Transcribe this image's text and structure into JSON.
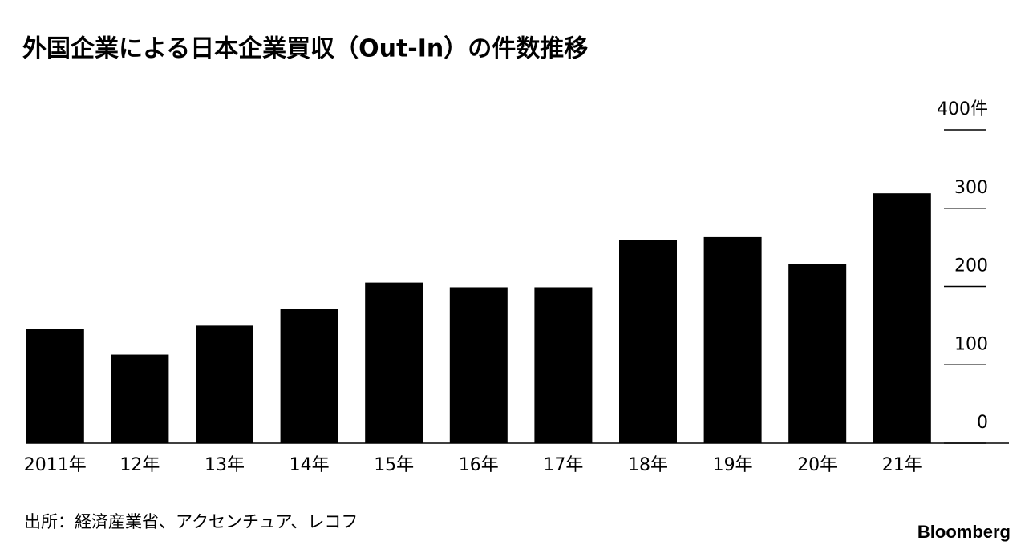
{
  "chart_data": {
    "type": "bar",
    "title": "外国企業による日本企業買収（Out-In）の件数推移",
    "categories": [
      "2011年",
      "12年",
      "13年",
      "14年",
      "15年",
      "16年",
      "17年",
      "18年",
      "19年",
      "20年",
      "21年"
    ],
    "values": [
      146,
      113,
      150,
      171,
      205,
      199,
      199,
      259,
      263,
      229,
      319
    ],
    "color": "#000000",
    "ylim": [
      0,
      400
    ],
    "yticks": [
      0,
      100,
      200,
      300,
      {
        "value": 400,
        "label": "400件"
      }
    ],
    "source": "出所：経済産業省、アクセンチュア、レコフ",
    "brand": "Bloomberg"
  }
}
